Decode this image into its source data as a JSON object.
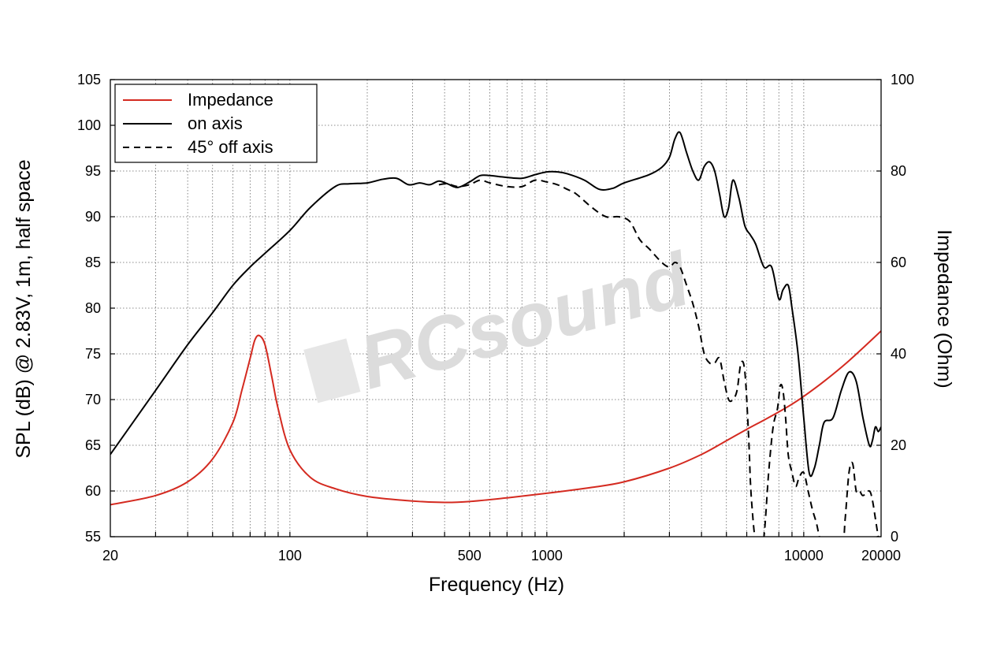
{
  "chart_data": {
    "type": "line",
    "x_scale": "log",
    "xlim": [
      20,
      20000
    ],
    "ylim_left": [
      55,
      105
    ],
    "ylim_right": [
      0,
      100
    ],
    "grid": true,
    "xlabel": "Frequency (Hz)",
    "ylabel_left": "SPL (dB) @ 2.83V, 1m, half space",
    "ylabel_right": "Impedance (Ohm)",
    "x_tick_labels": [
      "20",
      "100",
      "500",
      "1000",
      "10000",
      "20000"
    ],
    "x_ticks": [
      20,
      100,
      500,
      1000,
      10000,
      20000
    ],
    "y_left_ticks": [
      55,
      60,
      65,
      70,
      75,
      80,
      85,
      90,
      95,
      100,
      105
    ],
    "y_right_ticks": [
      0,
      20,
      40,
      60,
      80,
      100
    ],
    "legend_position": "top-left",
    "watermark": "RCsound",
    "series": [
      {
        "name": "Impedance",
        "axis": "right",
        "color": "#d42a20",
        "style": "solid",
        "x": [
          20,
          30,
          40,
          50,
          60,
          65,
          70,
          73,
          76,
          80,
          85,
          90,
          100,
          120,
          150,
          200,
          300,
          400,
          500,
          700,
          1000,
          1500,
          2000,
          3000,
          4000,
          5000,
          6000,
          7000,
          8000,
          9000,
          10000,
          12000,
          15000,
          20000
        ],
        "y": [
          7,
          9,
          12,
          17,
          25,
          32,
          39,
          43,
          44,
          42,
          35,
          28,
          19,
          13,
          10.5,
          8.8,
          7.8,
          7.5,
          7.7,
          8.5,
          9.5,
          10.8,
          12,
          15,
          18,
          21,
          23.5,
          25.5,
          27.3,
          29,
          30.7,
          34,
          38.5,
          45
        ]
      },
      {
        "name": "on axis",
        "axis": "left",
        "color": "#000000",
        "style": "solid",
        "x": [
          20,
          30,
          40,
          50,
          60,
          70,
          80,
          100,
          120,
          150,
          170,
          200,
          230,
          260,
          290,
          320,
          350,
          380,
          410,
          450,
          500,
          550,
          600,
          700,
          800,
          900,
          1000,
          1100,
          1200,
          1400,
          1600,
          1800,
          2000,
          2500,
          2800,
          3000,
          3150,
          3300,
          3500,
          3700,
          3900,
          4100,
          4300,
          4500,
          4700,
          4900,
          5100,
          5300,
          5600,
          5900,
          6200,
          6500,
          7000,
          7500,
          8000,
          8300,
          8700,
          9000,
          9500,
          10000,
          10500,
          11000,
          11500,
          12000,
          13000,
          14000,
          15000,
          16000,
          17000,
          18000,
          18500,
          19000,
          19500,
          20000
        ],
        "y": [
          64,
          71,
          76,
          79.5,
          82.5,
          84.5,
          86,
          88.5,
          91,
          93.3,
          93.6,
          93.7,
          94.1,
          94.2,
          93.5,
          93.7,
          93.5,
          93.9,
          93.6,
          93.2,
          93.8,
          94.5,
          94.5,
          94.3,
          94.2,
          94.6,
          94.9,
          94.9,
          94.7,
          94.0,
          93.0,
          93.1,
          93.7,
          94.6,
          95.4,
          96.5,
          98.5,
          99.2,
          97.0,
          95.0,
          94.0,
          95.5,
          96.0,
          95.0,
          92.5,
          90.0,
          91.0,
          94.0,
          92.0,
          89.0,
          88.0,
          87.0,
          84.5,
          84.5,
          81.0,
          82.0,
          82.5,
          80.0,
          75.0,
          68.0,
          62.0,
          62.5,
          65.0,
          67.5,
          68.0,
          71.0,
          73.0,
          72.0,
          68.0,
          65.0,
          65.5,
          67.0,
          66.5,
          67.0
        ]
      },
      {
        "name": "45° off axis",
        "axis": "left",
        "color": "#000000",
        "style": "dashed",
        "x": [
          380,
          410,
          450,
          500,
          550,
          600,
          700,
          800,
          900,
          1000,
          1100,
          1200,
          1300,
          1500,
          1700,
          1900,
          2100,
          2300,
          2500,
          2800,
          3000,
          3150,
          3300,
          3500,
          3700,
          3900,
          4100,
          4300,
          4500,
          4700,
          4900,
          5100,
          5300,
          5500,
          5700,
          5900,
          6100,
          6200,
          6300,
          6450,
          6700,
          7000,
          7300,
          7600,
          7900,
          8100,
          8300,
          8500,
          8700,
          9000,
          9300,
          9600,
          10000,
          10400,
          10800,
          11200,
          11500,
          11800,
          12000,
          12200,
          14000,
          14500,
          15000,
          15500,
          16000,
          16500,
          17000,
          18000,
          18500,
          19000,
          19500,
          20000
        ],
        "y": [
          93.5,
          93.6,
          93.3,
          93.5,
          94.0,
          93.7,
          93.3,
          93.3,
          94.0,
          93.8,
          93.5,
          93.0,
          92.5,
          91.0,
          90.0,
          90.0,
          89.5,
          87.5,
          86.5,
          85.0,
          84.5,
          85.0,
          84.5,
          82.5,
          80.5,
          78.0,
          75.0,
          74.0,
          74.0,
          74.5,
          72.0,
          70.0,
          70.0,
          71.0,
          74.0,
          73.0,
          66.0,
          61.0,
          58.0,
          55.0,
          53.0,
          55.0,
          62.0,
          67.0,
          69.0,
          71.5,
          71.0,
          68.0,
          64.0,
          62.0,
          60.5,
          61.5,
          62.0,
          60.0,
          58.0,
          56.5,
          55.0,
          54.0,
          53.0,
          52.0,
          53.0,
          57.0,
          62.0,
          63.0,
          60.0,
          60.0,
          59.5,
          60.0,
          59.0,
          57.0,
          55.0,
          53.5
        ]
      }
    ]
  }
}
